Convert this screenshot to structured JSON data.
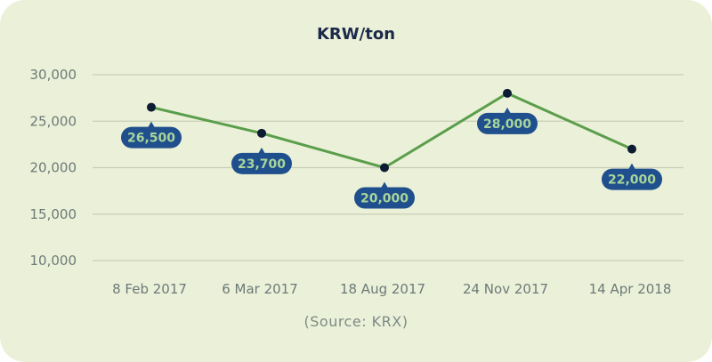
{
  "chart_data": {
    "type": "line",
    "title": "KRW/ton",
    "source": "(Source: KRX)",
    "categories": [
      "8 Feb 2017",
      "6 Mar 2017",
      "18 Aug 2017",
      "24 Nov 2017",
      "14 Apr 2018"
    ],
    "values": [
      26500,
      23700,
      20000,
      28000,
      22000
    ],
    "data_labels": [
      "26,500",
      "23,700",
      "20,000",
      "28,000",
      "22,000"
    ],
    "y_ticks": [
      10000,
      15000,
      20000,
      25000,
      30000
    ],
    "y_tick_labels": [
      "10,000",
      "15,000",
      "20,000",
      "25,000",
      "30,000"
    ],
    "ylim": [
      10000,
      30000
    ],
    "grid": true,
    "colors": {
      "background": "#ebf0d8",
      "line": "#5a9e4b",
      "point": "#0d1b33",
      "label_bg": "#1f4f8c",
      "label_text": "#a9d59a",
      "grid": "#c9cfb6"
    }
  }
}
